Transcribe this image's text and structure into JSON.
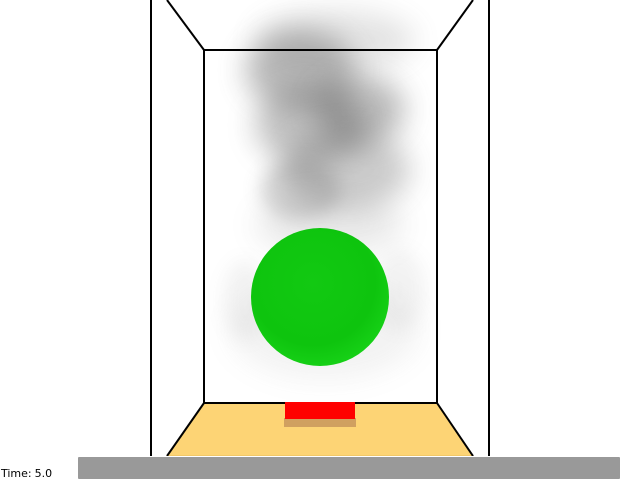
{
  "time_bar": {
    "label": "Time:",
    "value": "5.0"
  },
  "scene": {
    "description_items": [
      "room-walls",
      "smoke-plume",
      "sphere",
      "heater-block",
      "floor"
    ],
    "colors": {
      "background": "#ffffff",
      "walls_outline": "#000000",
      "floor": "#fdd475",
      "sphere": "#11cc11",
      "heater_top": "#ff0000",
      "heater_side": "#d0a060",
      "smoke": "#555555",
      "slider": "#999999"
    }
  }
}
